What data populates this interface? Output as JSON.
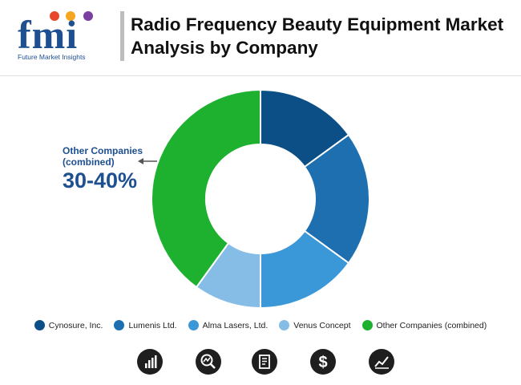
{
  "brand": {
    "letters": "fmi",
    "tagline": "Future Market Insights",
    "dot_colors": [
      "#e8472b",
      "#f5a623",
      "#7b3fa0"
    ]
  },
  "title": "Radio Frequency Beauty Equipment Market Analysis by Company",
  "callout": {
    "label": "Other Companies (combined)",
    "value": "30-40%"
  },
  "chart_data": {
    "type": "pie",
    "variant": "donut",
    "title": "Radio Frequency Beauty Equipment Market Analysis by Company",
    "categories": [
      "Cynosure, Inc.",
      "Lumenis Ltd.",
      "Alma Lasers, Ltd.",
      "Venus Concept",
      "Other Companies (combined)"
    ],
    "values": [
      15,
      20,
      15,
      10,
      40
    ],
    "colors": [
      "#0b4f86",
      "#1e6fb0",
      "#3a98d8",
      "#86bde6",
      "#1db12f"
    ],
    "legend_position": "bottom",
    "annotations": [
      {
        "category": "Other Companies (combined)",
        "text": "30-40%"
      }
    ]
  },
  "icons": [
    "bar-chart-icon",
    "magnifier-chart-icon",
    "report-document-icon",
    "dollar-icon",
    "line-chart-icon"
  ]
}
